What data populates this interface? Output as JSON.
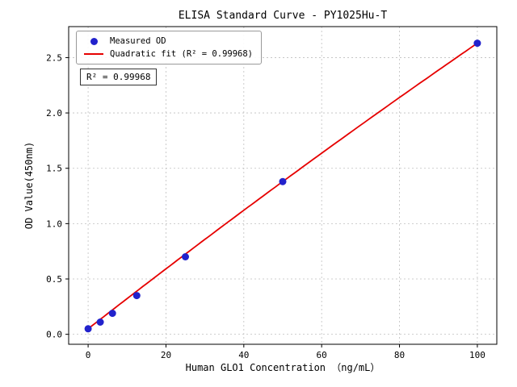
{
  "chart_data": {
    "type": "scatter",
    "title": "ELISA Standard Curve - PY1025Hu-T",
    "xlabel": "Human GLO1 Concentration （ng/mL）",
    "ylabel": "OD Value(450nm)",
    "x": [
      0,
      3.125,
      6.25,
      12.5,
      25,
      50,
      100
    ],
    "y": [
      0.05,
      0.11,
      0.19,
      0.35,
      0.7,
      1.38,
      2.63
    ],
    "xticks": [
      0,
      20,
      40,
      60,
      80,
      100
    ],
    "xtick_labels": [
      "0",
      "20",
      "40",
      "60",
      "80",
      "100"
    ],
    "yticks": [
      0,
      0.5,
      1.0,
      1.5,
      2.0,
      2.5
    ],
    "ytick_labels": [
      "0.0",
      "0.5",
      "1.0",
      "1.5",
      "2.0",
      "2.5"
    ],
    "xlim": [
      -5,
      105
    ],
    "ylim": [
      -0.09,
      2.78
    ],
    "grid": true,
    "legend": [
      {
        "label": "Measured OD",
        "marker": "dot",
        "color": "#2222cc"
      },
      {
        "label": "Quadratic fit (R² = 0.99968)",
        "marker": "line",
        "color": "#e60000"
      }
    ],
    "annotation": "R² = 0.99968",
    "fit": {
      "type": "quadratic",
      "r_squared": 0.99968
    },
    "colors": {
      "point": "#2222cc",
      "line": "#e60000",
      "grid": "#bfbfbf"
    }
  }
}
